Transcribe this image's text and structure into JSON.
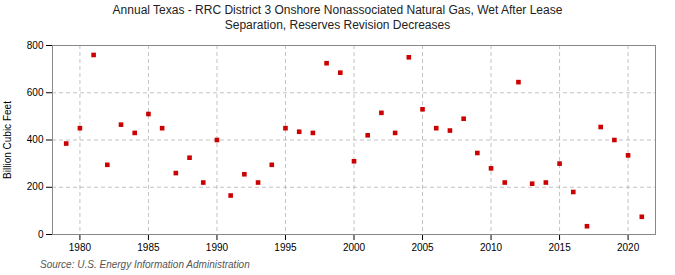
{
  "chart_data": {
    "type": "scatter",
    "title": "Annual Texas - RRC District 3 Onshore Nonassociated Natural Gas, Wet After Lease\nSeparation, Reserves Revision Decreases",
    "ylabel": "Billion Cubic Feet",
    "source": "Source: U.S. Energy Information Administration",
    "x": [
      1979,
      1980,
      1981,
      1982,
      1983,
      1984,
      1985,
      1986,
      1987,
      1988,
      1989,
      1990,
      1991,
      1992,
      1993,
      1994,
      1995,
      1996,
      1997,
      1998,
      1999,
      2000,
      2001,
      2002,
      2003,
      2004,
      2005,
      2006,
      2007,
      2008,
      2009,
      2010,
      2011,
      2012,
      2013,
      2014,
      2015,
      2016,
      2017,
      2018,
      2019,
      2020,
      2021
    ],
    "values": [
      385,
      450,
      760,
      295,
      465,
      430,
      510,
      450,
      260,
      325,
      220,
      400,
      165,
      255,
      220,
      295,
      450,
      435,
      430,
      725,
      685,
      310,
      420,
      515,
      430,
      750,
      530,
      450,
      440,
      490,
      345,
      280,
      220,
      645,
      215,
      220,
      300,
      180,
      35,
      455,
      400,
      335,
      75
    ],
    "color": "#cc0000",
    "marker": "square",
    "xlim": [
      1978,
      2022
    ],
    "xticks": [
      1980,
      1985,
      1990,
      1995,
      2000,
      2005,
      2010,
      2015,
      2020
    ],
    "ylim": [
      0,
      800
    ],
    "yticks": [
      0,
      200,
      400,
      600,
      800
    ],
    "grid": true
  }
}
